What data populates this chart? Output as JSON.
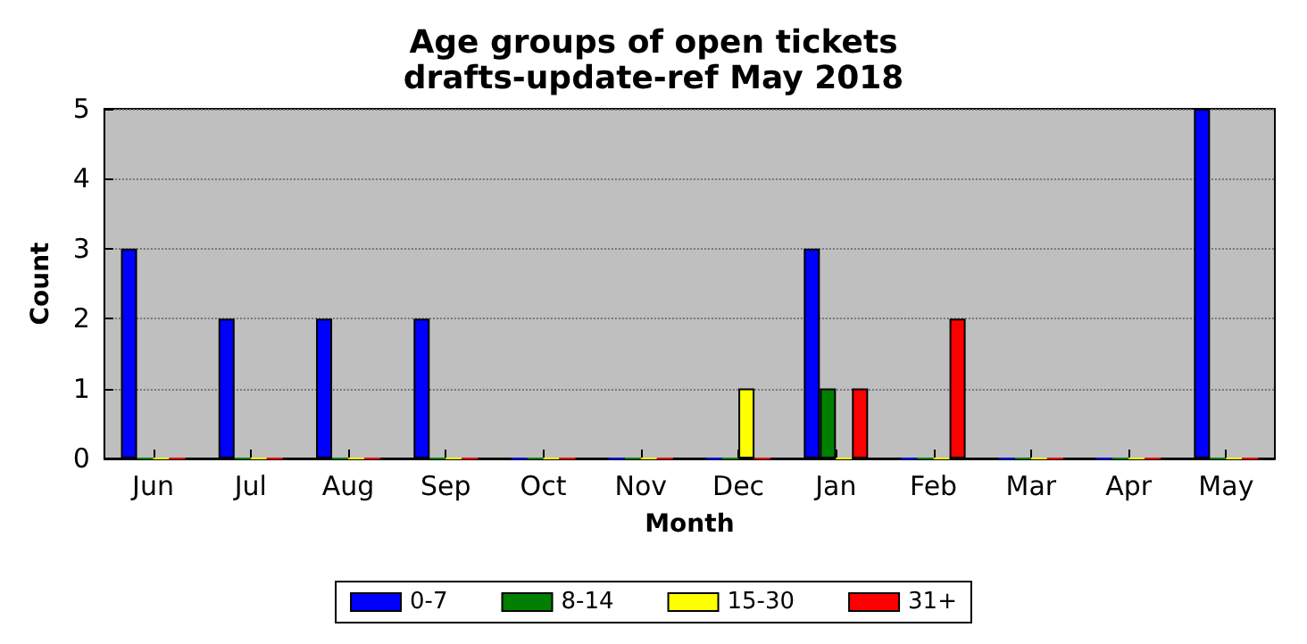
{
  "chart_data": {
    "type": "bar",
    "title": "Age groups of open tickets",
    "subtitle": "drafts-update-ref May 2018",
    "xlabel": "Month",
    "ylabel": "Count",
    "categories": [
      "Jun",
      "Jul",
      "Aug",
      "Sep",
      "Oct",
      "Nov",
      "Dec",
      "Jan",
      "Feb",
      "Mar",
      "Apr",
      "May"
    ],
    "series": [
      {
        "name": "0-7",
        "color": "#0000ff",
        "values": [
          3,
          2,
          2,
          2,
          0,
          0,
          0,
          3,
          0,
          0,
          0,
          5
        ]
      },
      {
        "name": "8-14",
        "color": "#008000",
        "values": [
          0,
          0,
          0,
          0,
          0,
          0,
          0,
          1,
          0,
          0,
          0,
          0
        ]
      },
      {
        "name": "15-30",
        "color": "#ffff00",
        "values": [
          0,
          0,
          0,
          0,
          0,
          0,
          1,
          0,
          0,
          0,
          0,
          0
        ]
      },
      {
        "name": "31+",
        "color": "#ff0000",
        "values": [
          0,
          0,
          0,
          0,
          0,
          0,
          0,
          1,
          2,
          0,
          0,
          0
        ]
      }
    ],
    "ylim": [
      0,
      5
    ],
    "yticks": [
      0,
      1,
      2,
      3,
      4,
      5
    ],
    "grid": "y",
    "legend": "bottom"
  }
}
